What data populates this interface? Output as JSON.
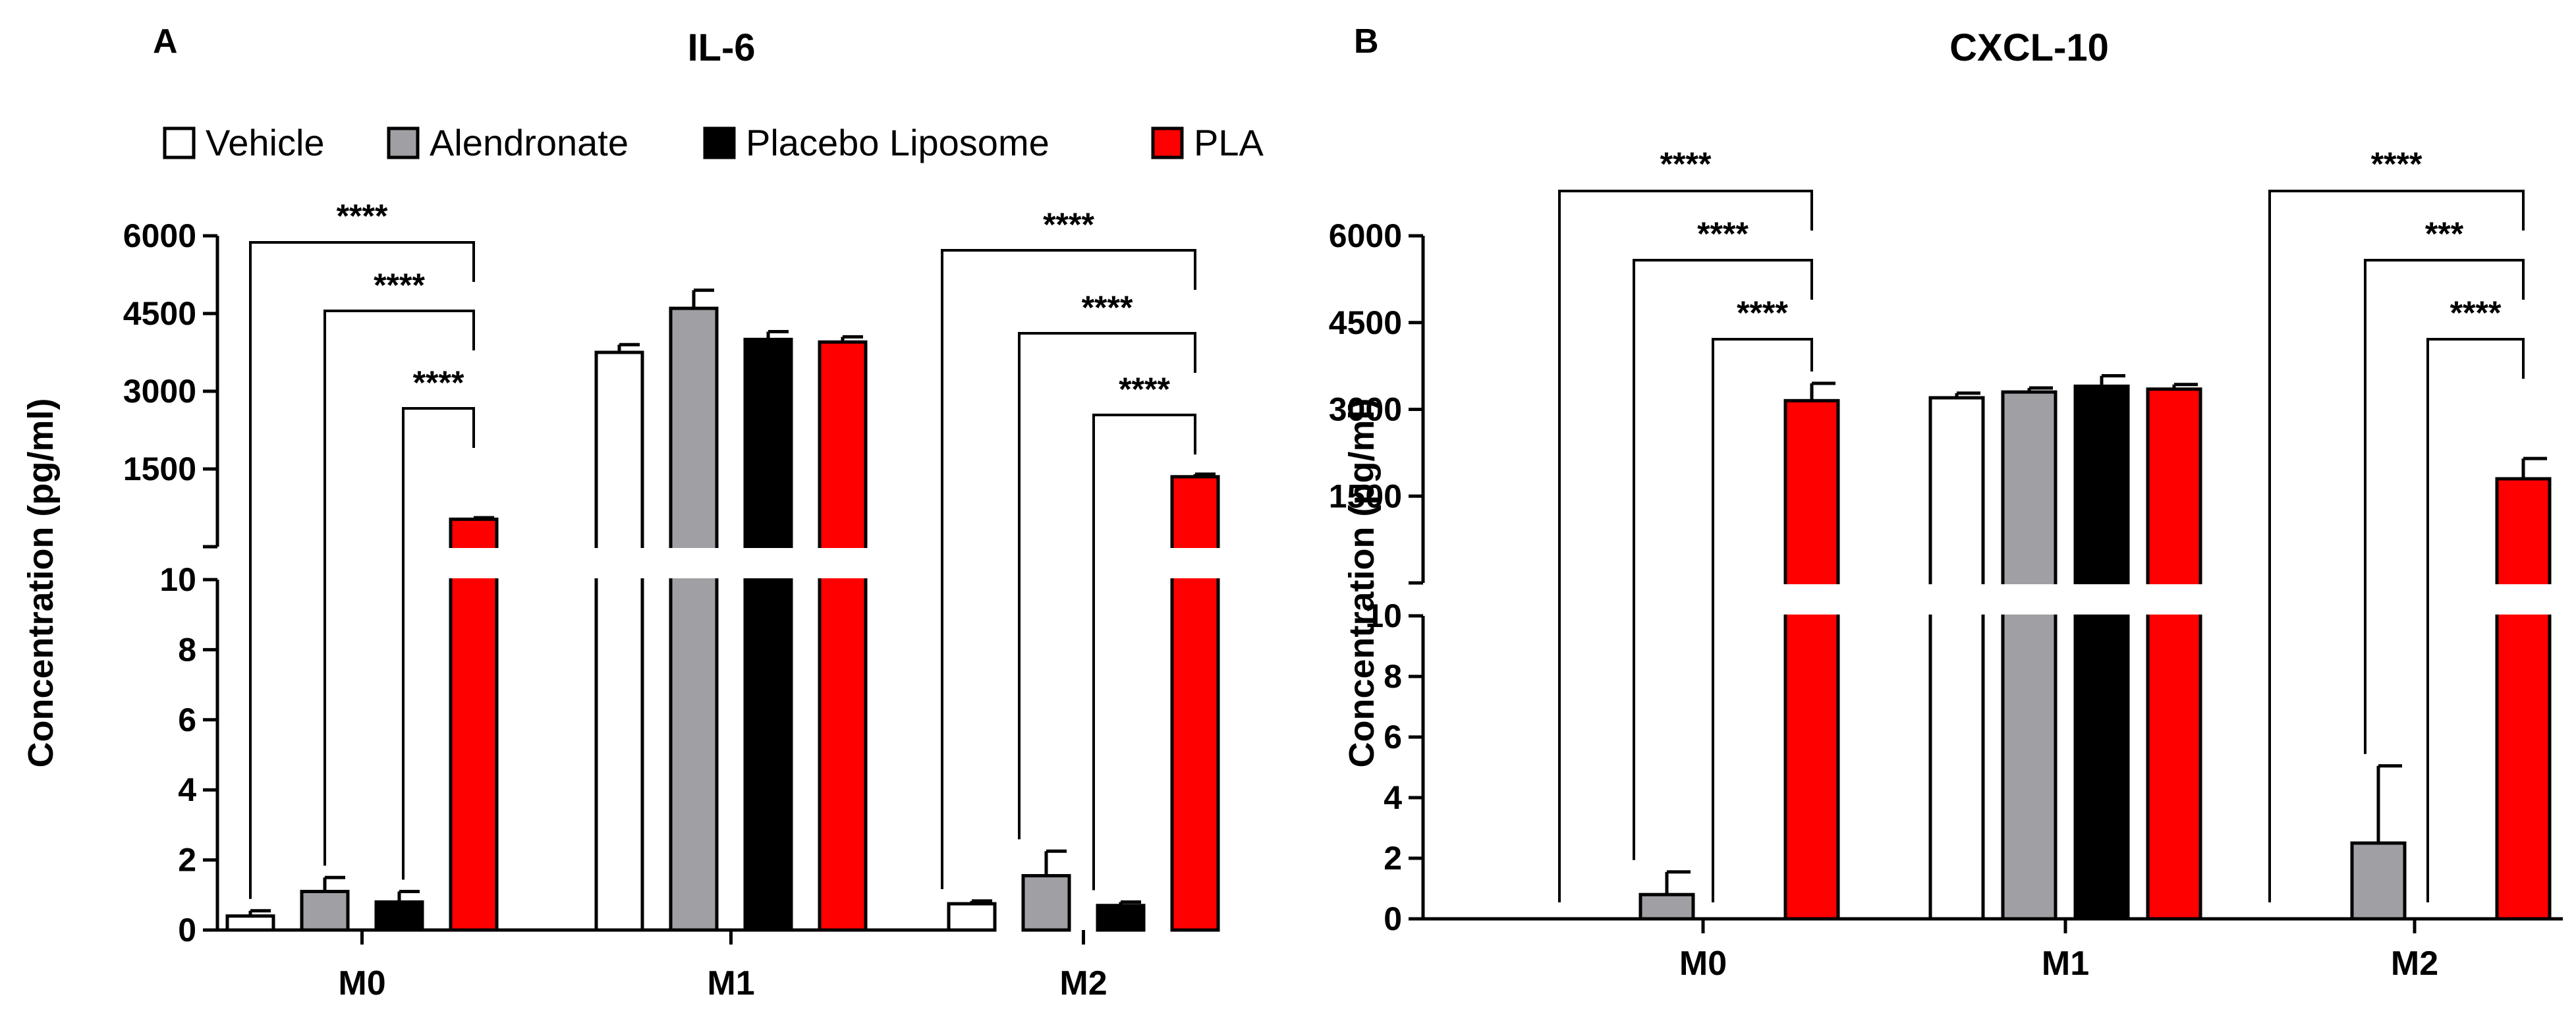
{
  "chart_data": [
    {
      "panel": "A",
      "type": "bar",
      "title": "IL-6",
      "ylabel": "Concentration (pg/ml)",
      "xlabel": "",
      "categories": [
        "M0",
        "M1",
        "M2"
      ],
      "broken_axis": {
        "lower_range": [
          0,
          10
        ],
        "lower_ticks": [
          "0",
          "2",
          "4",
          "6",
          "8",
          "10"
        ],
        "upper_range": [
          0,
          6000
        ],
        "upper_ticks": [
          "1500",
          "3000",
          "4500",
          "6000"
        ]
      },
      "series": [
        {
          "name": "Vehicle",
          "color": "#ffffff",
          "values": [
            0.4,
            3750,
            0.75
          ],
          "errors": [
            0.15,
            150,
            0.08
          ]
        },
        {
          "name": "Alendronate",
          "color": "#a0a0a4",
          "values": [
            1.1,
            4600,
            1.55
          ],
          "errors": [
            0.4,
            350,
            0.7
          ]
        },
        {
          "name": "Placebo Liposome",
          "color": "#000000",
          "values": [
            0.8,
            4000,
            0.7
          ],
          "errors": [
            0.3,
            150,
            0.1
          ]
        },
        {
          "name": "PLA",
          "color": "#ff0000",
          "values": [
            530,
            3950,
            1350
          ],
          "errors": [
            30,
            100,
            50
          ]
        }
      ],
      "significance": [
        {
          "category": "M0",
          "from": "Vehicle",
          "to": "PLA",
          "label": "****"
        },
        {
          "category": "M0",
          "from": "Alendronate",
          "to": "PLA",
          "label": "****"
        },
        {
          "category": "M0",
          "from": "Placebo Liposome",
          "to": "PLA",
          "label": "****"
        },
        {
          "category": "M2",
          "from": "Vehicle",
          "to": "PLA",
          "label": "****"
        },
        {
          "category": "M2",
          "from": "Alendronate",
          "to": "PLA",
          "label": "****"
        },
        {
          "category": "M2",
          "from": "Placebo Liposome",
          "to": "PLA",
          "label": "****"
        }
      ],
      "legend": [
        "Vehicle",
        "Alendronate",
        "Placebo Liposome",
        "PLA"
      ],
      "legend_position": "top"
    },
    {
      "panel": "B",
      "type": "bar",
      "title": "CXCL-10",
      "ylabel": "Concentration (pg/ml)",
      "xlabel": "",
      "categories": [
        "M0",
        "M1",
        "M2"
      ],
      "broken_axis": {
        "lower_range": [
          0,
          10
        ],
        "lower_ticks": [
          "0",
          "2",
          "4",
          "6",
          "8",
          "10"
        ],
        "upper_range": [
          0,
          6000
        ],
        "upper_ticks": [
          "1500",
          "3000",
          "4500",
          "6000"
        ]
      },
      "series": [
        {
          "name": "Vehicle",
          "color": "#ffffff",
          "values": [
            0,
            3200,
            0
          ],
          "errors": [
            0,
            80,
            0
          ]
        },
        {
          "name": "Alendronate",
          "color": "#a0a0a4",
          "values": [
            0.8,
            3300,
            2.5
          ],
          "errors": [
            0.75,
            70,
            2.55
          ]
        },
        {
          "name": "Placebo Liposome",
          "color": "#000000",
          "values": [
            0,
            3400,
            0
          ],
          "errors": [
            0,
            180,
            0
          ]
        },
        {
          "name": "PLA",
          "color": "#ff0000",
          "values": [
            3150,
            3350,
            1800
          ],
          "errors": [
            300,
            80,
            350
          ]
        }
      ],
      "significance": [
        {
          "category": "M0",
          "from": "Vehicle",
          "to": "PLA",
          "label": "****"
        },
        {
          "category": "M0",
          "from": "Alendronate",
          "to": "PLA",
          "label": "****"
        },
        {
          "category": "M0",
          "from": "Placebo Liposome",
          "to": "PLA",
          "label": "****"
        },
        {
          "category": "M2",
          "from": "Vehicle",
          "to": "PLA",
          "label": "****"
        },
        {
          "category": "M2",
          "from": "Alendronate",
          "to": "PLA",
          "label": "***"
        },
        {
          "category": "M2",
          "from": "Placebo Liposome",
          "to": "PLA",
          "label": "****"
        }
      ]
    }
  ]
}
